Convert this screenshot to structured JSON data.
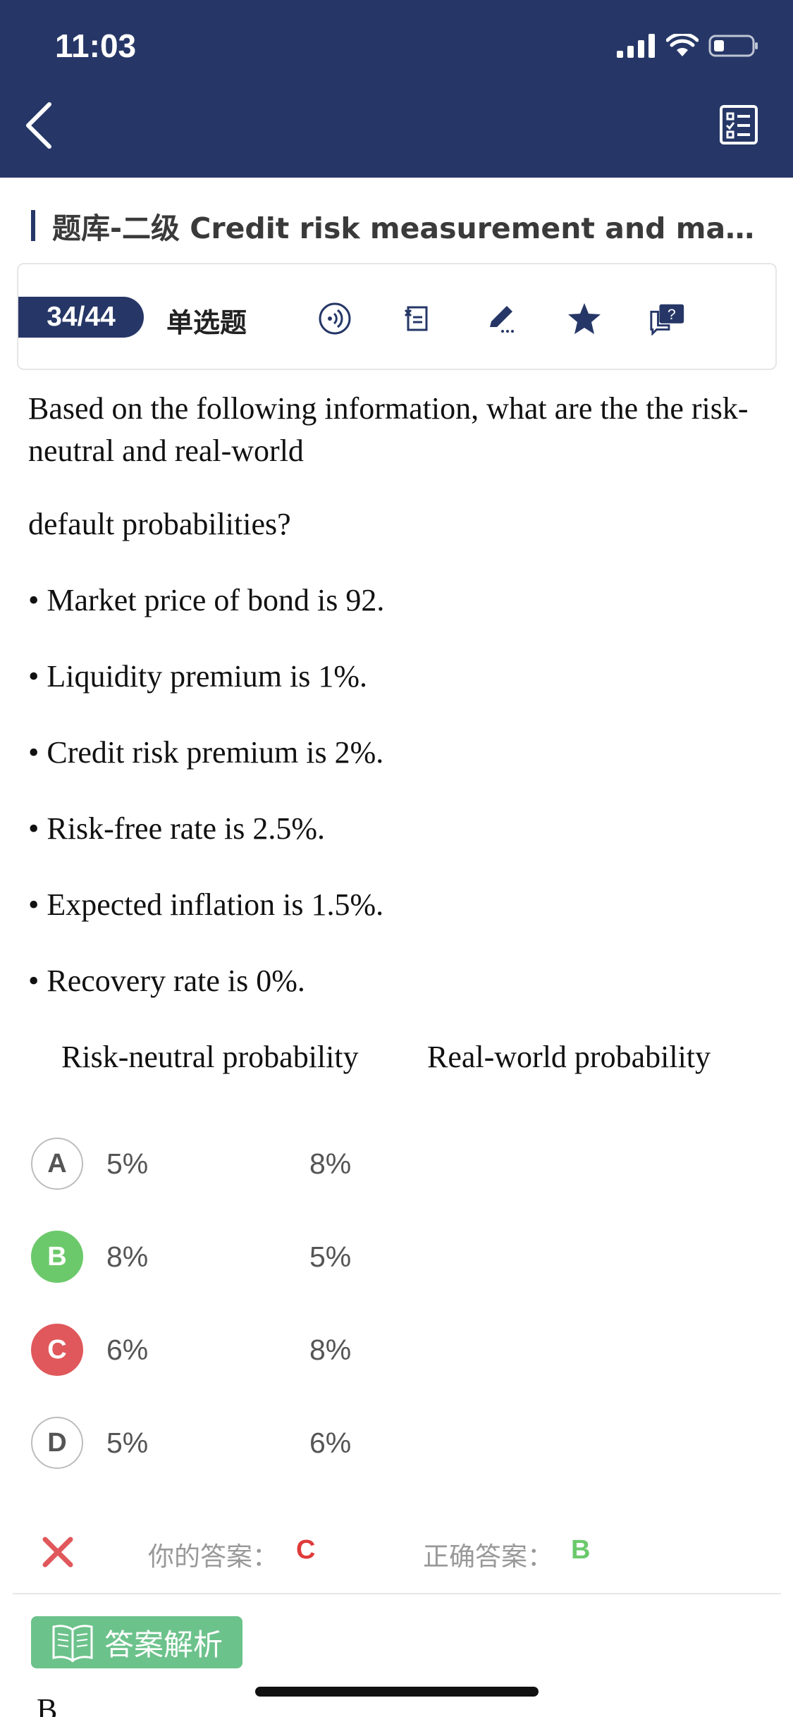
{
  "status_bar": {
    "time": "11:03"
  },
  "header": {
    "back_icon": "chevron-left-icon",
    "list_icon": "checklist-icon"
  },
  "title": "题库-二级 Credit risk measurement and manage...",
  "toolbar": {
    "counter": "34/44",
    "question_type": "单选题",
    "icons": [
      "audio-icon",
      "notes-icon",
      "edit-icon",
      "star-icon",
      "question-chat-icon"
    ]
  },
  "question": {
    "intro": "Based on the following information, what are the the risk-neutral and real-world",
    "intro_cont": "default probabilities?",
    "bullets": [
      "• Market price of bond is 92.",
      "• Liquidity premium is 1%.",
      "• Credit risk premium is 2%.",
      "• Risk-free rate is 2.5%.",
      "• Expected inflation is 1.5%.",
      "• Recovery rate is 0%."
    ],
    "col_header_1": "Risk-neutral probability",
    "col_header_2": "Real-world probability"
  },
  "options": [
    {
      "letter": "A",
      "v1": "5%",
      "v2": "8%",
      "state": "neutral"
    },
    {
      "letter": "B",
      "v1": "8%",
      "v2": "5%",
      "state": "correct"
    },
    {
      "letter": "C",
      "v1": "6%",
      "v2": "8%",
      "state": "wrong"
    },
    {
      "letter": "D",
      "v1": "5%",
      "v2": "6%",
      "state": "neutral"
    }
  ],
  "result": {
    "your_label": "你的答案：",
    "your_answer": "C",
    "correct_label": "正确答案：",
    "correct_answer": "B"
  },
  "analysis_button": "答案解析",
  "peek_text": "B",
  "colors": {
    "header": "#263767",
    "correct": "#6cc96b",
    "wrong": "#e0585b",
    "analysis": "#6cc28b"
  }
}
